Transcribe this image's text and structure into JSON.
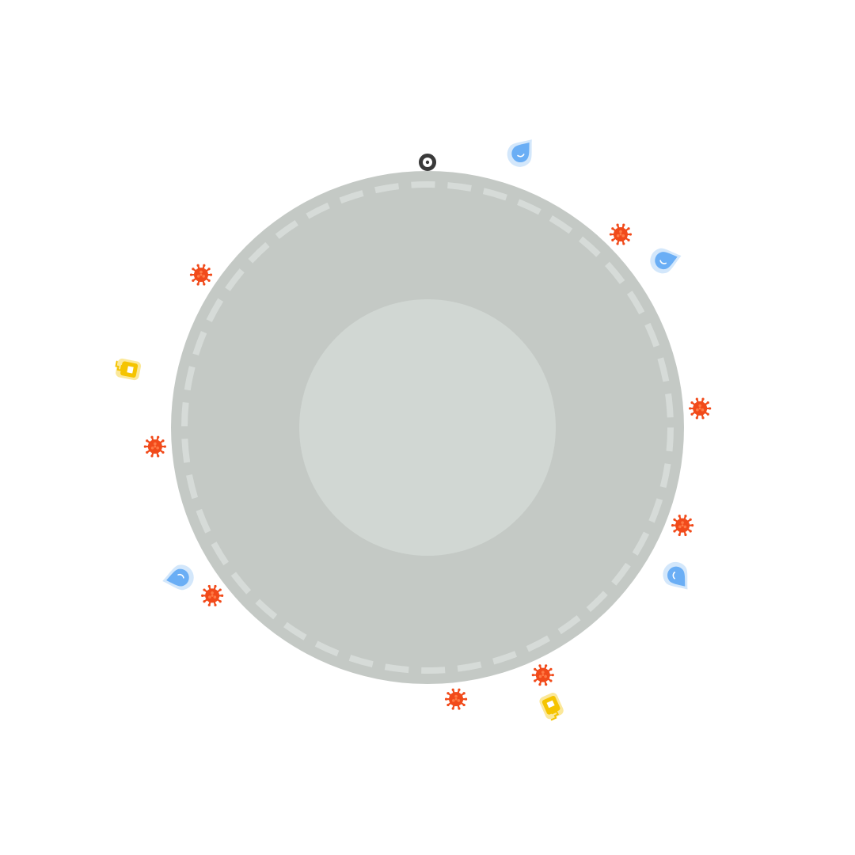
{
  "colors": {
    "background": "#ffffff",
    "planet_outer": "#c4c9c5",
    "planet_inner": "#d1d7d3",
    "track_dashes": "#d6dbd8",
    "player": "#3a3a3a",
    "virus": "#f14a1a",
    "virus_center": "#ff7a45",
    "drop": "#6aaef5",
    "drop_halo": "#d3e7fb",
    "sanitizer": "#f5c400",
    "sanitizer_halo": "#fbe89a"
  },
  "icons": {
    "player": "player-ring-icon",
    "virus": "virus-icon",
    "water": "water-drop-icon",
    "sanitizer": "sanitizer-bottle-icon"
  },
  "game": {
    "player": {
      "angle_deg": 0
    },
    "viruses": [
      {
        "angle_deg": 45
      },
      {
        "angle_deg": 86
      },
      {
        "angle_deg": 111
      },
      {
        "angle_deg": 155
      },
      {
        "angle_deg": 174
      },
      {
        "angle_deg": 232
      },
      {
        "angle_deg": 266
      },
      {
        "angle_deg": 304
      }
    ],
    "water_drops": [
      {
        "angle_deg": 19
      },
      {
        "angle_deg": 55
      },
      {
        "angle_deg": 121
      },
      {
        "angle_deg": 239
      }
    ],
    "sanitizers": [
      {
        "angle_deg": 156
      },
      {
        "angle_deg": 281
      }
    ]
  }
}
